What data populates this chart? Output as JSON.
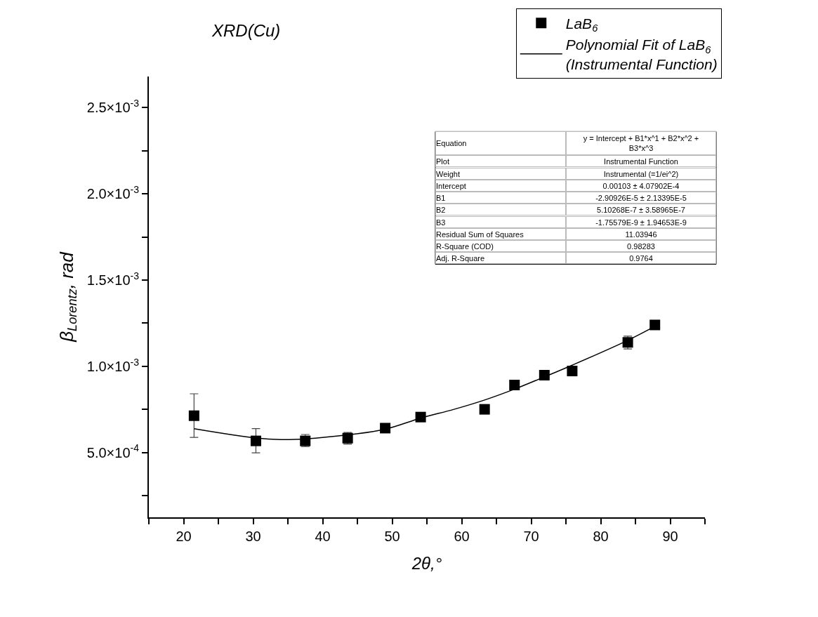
{
  "chart_data": {
    "type": "scatter",
    "title": "XRD(Cu)",
    "xlabel": "2θ,°",
    "ylabel": "β$_{Lorentz}$, rad",
    "series": [
      {
        "name": "LaB$_{6}$",
        "color": "#000000",
        "marker": "square",
        "x": [
          21.5,
          30.4,
          37.5,
          43.6,
          49.0,
          54.1,
          63.3,
          67.6,
          71.9,
          75.9,
          83.9,
          87.8
        ],
        "values": [
          0.000714,
          0.000568,
          0.000568,
          0.000584,
          0.000642,
          0.000706,
          0.000751,
          0.000892,
          0.000949,
          0.000973,
          0.001139,
          0.00124
        ],
        "errors": [
          [
            0.000588,
            0.000841
          ],
          [
            0.000499,
            0.000639
          ],
          [
            0.000535,
            0.000605
          ],
          [
            0.00055,
            0.000617
          ],
          null,
          null,
          null,
          null,
          null,
          null,
          [
            0.001101,
            0.001175
          ],
          null
        ]
      },
      {
        "name": "Polynomial Fit of LaB$_{6}$ (Instrumental Function)",
        "type": "line",
        "color": "#000000",
        "marker": "none",
        "line_style": "solid",
        "x": [
          21.5,
          30.4,
          34.0,
          37.5,
          43.6,
          49.0,
          54.1,
          58.9,
          63.3,
          67.6,
          71.9,
          75.9,
          83.9,
          87.8
        ],
        "values": [
          0.000639,
          0.000585,
          0.000576,
          0.00058,
          0.000603,
          0.000636,
          0.0007,
          0.000751,
          0.000805,
          0.000868,
          0.000939,
          0.001007,
          0.001151,
          0.001232
        ]
      }
    ],
    "xlim": [
      15,
      95
    ],
    "xticks": [
      {
        "value": 15,
        "label": null
      },
      20,
      {
        "value": 25,
        "label": null
      },
      30,
      {
        "value": 35,
        "label": null
      },
      40,
      {
        "value": 45,
        "label": null
      },
      50,
      {
        "value": 55,
        "label": null
      },
      60,
      {
        "value": 65,
        "label": null
      },
      70,
      {
        "value": 75,
        "label": null
      },
      80,
      {
        "value": 85,
        "label": null
      },
      90,
      {
        "value": 95,
        "label": null
      }
    ],
    "ylim": [
      0.000125,
      0.00268
    ],
    "yticks": [
      {
        "value": 0.00025,
        "label": null
      },
      {
        "value": 0.0005,
        "label": "5.0×10$^{-4}$"
      },
      {
        "value": 0.00075,
        "label": null
      },
      {
        "value": 0.001,
        "label": "1.0×10$^{-3}$"
      },
      {
        "value": 0.00125,
        "label": null
      },
      {
        "value": 0.0015,
        "label": "1.5×10$^{-3}$"
      },
      {
        "value": 0.00175,
        "label": null
      },
      {
        "value": 0.002,
        "label": "2.0×10$^{-3}$"
      },
      {
        "value": 0.00225,
        "label": null
      },
      {
        "value": 0.0025,
        "label": "2.5×10$^{-3}$"
      }
    ],
    "legend": "top right",
    "annotations": [
      "Equation",
      "y = Intercept + B1*x^1 + B2*x^2 + B3*x^3",
      "Plot",
      "Instrumental Function",
      "Weight",
      "Instrumental (=1/ei^2)",
      "Intercept",
      "0.00103 ± 4.07902E-4",
      "B1",
      "-2.90926E-5 ± 2.13395E-5",
      "B2",
      "5.10268E-7 ± 3.58965E-7",
      "B3",
      "-1.75579E-9 ± 1.94653E-9",
      "Residual Sum of Squares",
      "11.03946",
      "R-Square (COD)",
      "0.98283",
      "Adj. R-Square",
      "0.9764"
    ]
  }
}
